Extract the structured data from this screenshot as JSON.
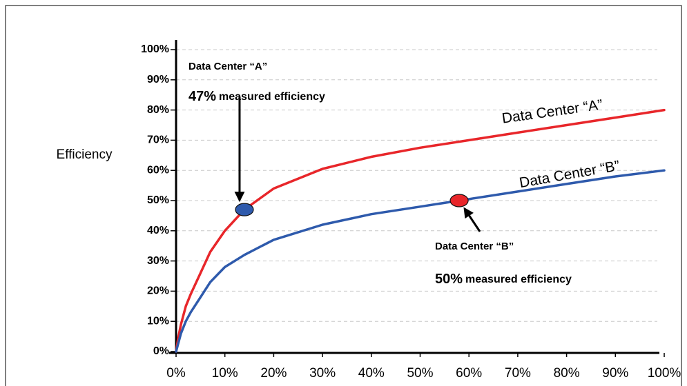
{
  "chart_data": {
    "type": "line",
    "y_label": "Efficiency",
    "x": [
      0,
      0.5,
      1,
      2,
      3,
      5,
      7,
      10,
      14,
      20,
      30,
      40,
      50,
      60,
      70,
      80,
      90,
      100
    ],
    "series": [
      {
        "name": "Data Center “A”",
        "color": "#e8262a",
        "values": [
          0,
          5,
          9,
          15,
          19,
          26,
          33,
          40,
          47,
          54,
          60.5,
          64.5,
          67.5,
          70,
          72.5,
          75,
          77.5,
          80
        ]
      },
      {
        "name": "Data Center “B”",
        "color": "#2e5aac",
        "values": [
          0,
          3,
          6,
          10,
          13,
          18,
          23,
          28,
          32,
          37,
          42,
          45.5,
          48,
          50.5,
          53,
          55.5,
          58,
          60
        ]
      }
    ],
    "markers": [
      {
        "x": 14,
        "y": 47,
        "color": "#2e5aac"
      },
      {
        "x": 58,
        "y": 50,
        "color": "#e8262a"
      }
    ],
    "annotations": [
      {
        "title": "Data Center “A”",
        "value": "47%",
        "text": "measured efficiency"
      },
      {
        "title": "Data Center “B”",
        "value": "50%",
        "text": "measured efficiency"
      }
    ],
    "xlim": [
      0,
      100
    ],
    "ylim": [
      0,
      100
    ],
    "xticks": [
      {
        "value": 0,
        "label": "0%"
      },
      {
        "value": 10,
        "label": "10%"
      },
      {
        "value": 20,
        "label": "20%"
      },
      {
        "value": 30,
        "label": "30%"
      },
      {
        "value": 40,
        "label": "40%"
      },
      {
        "value": 50,
        "label": "50%"
      },
      {
        "value": 60,
        "label": "60%"
      },
      {
        "value": 70,
        "label": "70%"
      },
      {
        "value": 80,
        "label": "80%"
      },
      {
        "value": 90,
        "label": "90%"
      },
      {
        "value": 100,
        "label": "100%"
      }
    ],
    "yticks": [
      {
        "value": 0,
        "label": "0%"
      },
      {
        "value": 10,
        "label": "10%"
      },
      {
        "value": 20,
        "label": "20%"
      },
      {
        "value": 30,
        "label": "30%"
      },
      {
        "value": 40,
        "label": "40%"
      },
      {
        "value": 50,
        "label": "50%"
      },
      {
        "value": 60,
        "label": "60%"
      },
      {
        "value": 70,
        "label": "70%"
      },
      {
        "value": 80,
        "label": "80%"
      },
      {
        "value": 90,
        "label": "90%"
      },
      {
        "value": 100,
        "label": "100%"
      }
    ],
    "grid": true
  }
}
